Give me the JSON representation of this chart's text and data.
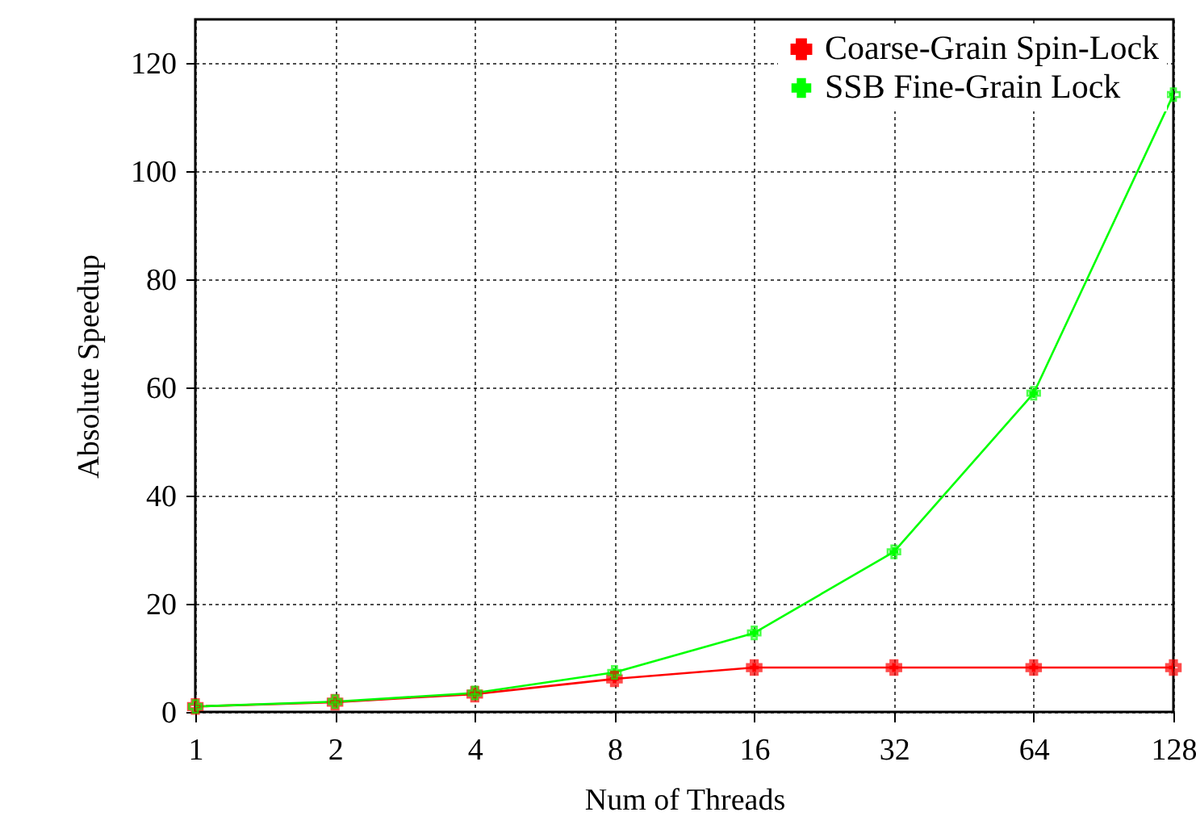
{
  "chart_data": {
    "type": "line",
    "xlabel": "Num of Threads",
    "ylabel": "Absolute Speedup",
    "x": [
      1,
      2,
      4,
      8,
      16,
      32,
      64,
      128
    ],
    "series": [
      {
        "name": "Coarse-Grain Spin-Lock",
        "color": "#ff0000",
        "marker": "cross",
        "values": [
          1,
          1.8,
          3.3,
          6.1,
          8.2,
          8.2,
          8.2,
          8.2
        ]
      },
      {
        "name": "SSB Fine-Grain Lock",
        "color": "#00ff00",
        "marker": "cross",
        "values": [
          1,
          1.9,
          3.5,
          7.3,
          14.6,
          29.6,
          58.9,
          114.1
        ]
      }
    ],
    "log": "x",
    "xlim": [
      1,
      128
    ],
    "xticks": [
      1,
      2,
      4,
      8,
      16,
      32,
      64,
      128
    ],
    "ylim": [
      0,
      128
    ],
    "yticks": [
      0,
      20,
      40,
      60,
      80,
      100,
      120
    ],
    "grid": true,
    "legend": "top right",
    "line_style": "solid"
  }
}
